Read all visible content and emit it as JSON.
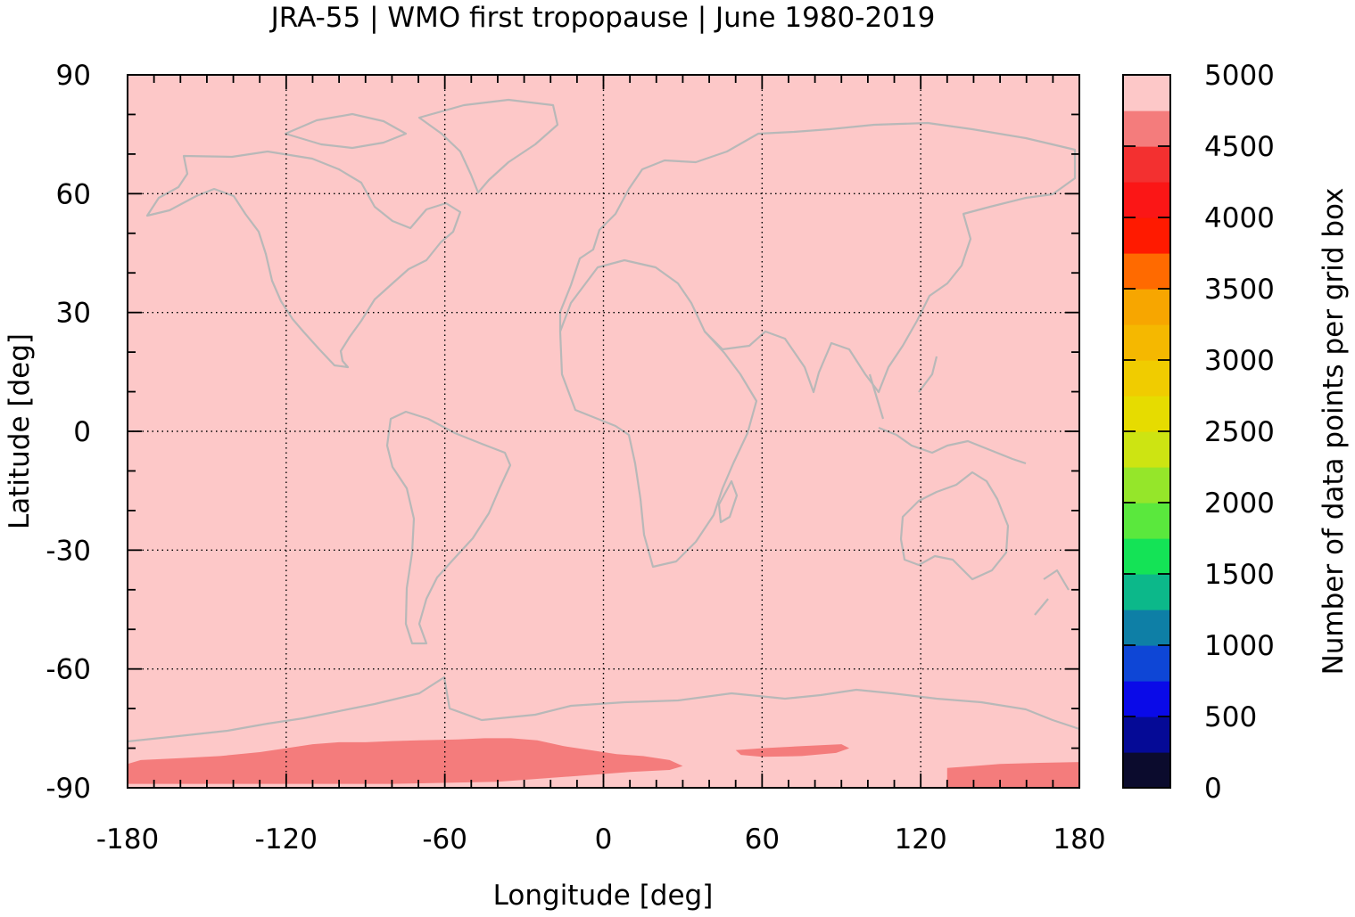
{
  "chart_data": {
    "type": "heatmap",
    "title": "JRA-55 | WMO first tropopause | June 1980-2019",
    "xlabel": "Longitude [deg]",
    "ylabel": "Latitude [deg]",
    "xlim": [
      -180,
      180
    ],
    "ylim": [
      -90,
      90
    ],
    "x_ticks": [
      -180,
      -120,
      -60,
      0,
      60,
      120,
      180
    ],
    "y_ticks": [
      90,
      60,
      30,
      0,
      -30,
      -60,
      -90
    ],
    "grid": true,
    "background_value": 4750,
    "regions": [
      {
        "value": 4500,
        "points": [
          [
            -180,
            -84
          ],
          [
            -175,
            -83
          ],
          [
            -160,
            -82.5
          ],
          [
            -145,
            -82
          ],
          [
            -130,
            -81
          ],
          [
            -120,
            -80
          ],
          [
            -110,
            -79
          ],
          [
            -100,
            -78.5
          ],
          [
            -90,
            -78.5
          ],
          [
            -80,
            -78.2
          ],
          [
            -70,
            -78
          ],
          [
            -55,
            -77.8
          ],
          [
            -45,
            -77.5
          ],
          [
            -35,
            -77.5
          ],
          [
            -25,
            -78
          ],
          [
            -15,
            -79.5
          ],
          [
            -5,
            -80.5
          ],
          [
            5,
            -81.5
          ],
          [
            15,
            -82
          ],
          [
            25,
            -83
          ],
          [
            30,
            -84.5
          ],
          [
            25,
            -85.5
          ],
          [
            10,
            -86
          ],
          [
            -10,
            -87
          ],
          [
            -40,
            -88.5
          ],
          [
            -80,
            -89
          ],
          [
            -120,
            -89
          ],
          [
            -160,
            -89
          ],
          [
            -180,
            -89
          ]
        ]
      },
      {
        "value": 4500,
        "points": [
          [
            50,
            -80.5
          ],
          [
            60,
            -80
          ],
          [
            75,
            -79.5
          ],
          [
            90,
            -79
          ],
          [
            93,
            -80
          ],
          [
            88,
            -81.2
          ],
          [
            75,
            -82
          ],
          [
            60,
            -82.2
          ],
          [
            52,
            -81.7
          ]
        ]
      },
      {
        "value": 4500,
        "points": [
          [
            130,
            -85
          ],
          [
            140,
            -84.5
          ],
          [
            150,
            -84
          ],
          [
            165,
            -83.7
          ],
          [
            180,
            -83.5
          ],
          [
            180,
            -90
          ],
          [
            130,
            -90
          ]
        ]
      }
    ],
    "colorbar": {
      "label": "Number of data points per grid box",
      "min": 0,
      "max": 5000,
      "step": 500,
      "tick_labels": [
        "0",
        "500",
        "1000",
        "1500",
        "2000",
        "2500",
        "3000",
        "3500",
        "4000",
        "4500",
        "5000"
      ],
      "colors": [
        "#0b0b2d",
        "#050a96",
        "#0a0ae8",
        "#0e46d6",
        "#0e7fa6",
        "#0cb88a",
        "#14e356",
        "#5ae83d",
        "#95e62a",
        "#cde412",
        "#e6dc00",
        "#f0cc00",
        "#f5b800",
        "#f7a600",
        "#ff6a00",
        "#ff1a00",
        "#fb1616",
        "#f33030",
        "#f47c7c",
        "#fdc8c8"
      ]
    },
    "coastline_color": "#b8b8b8"
  }
}
